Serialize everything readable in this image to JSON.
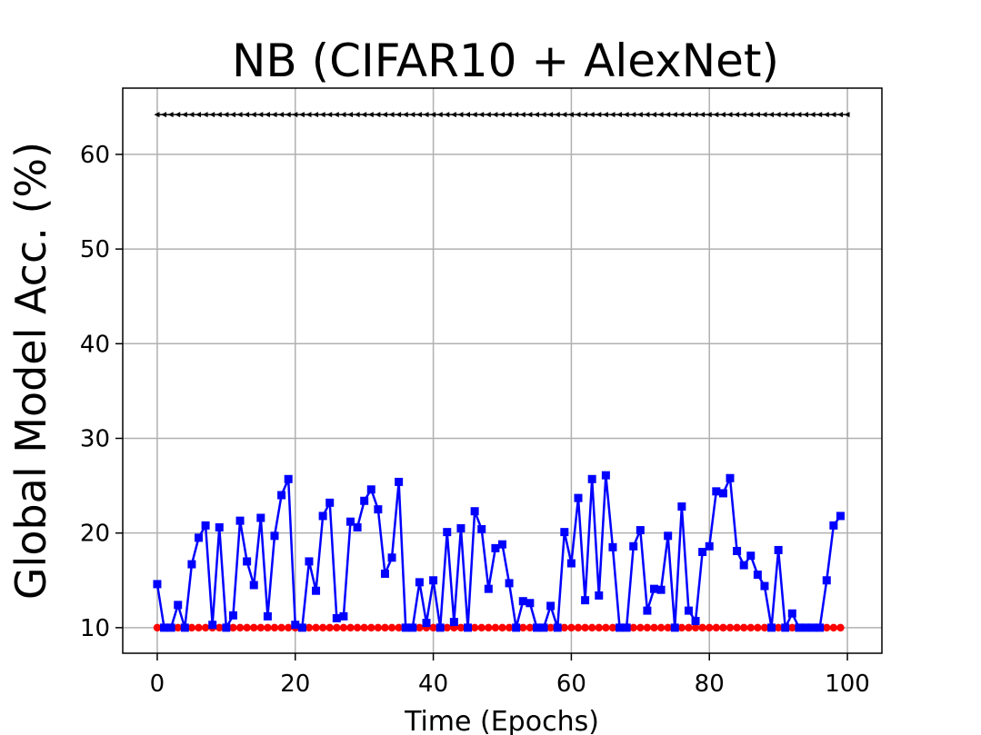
{
  "chart_data": {
    "type": "line",
    "title": "NB (CIFAR10 + AlexNet)",
    "xlabel": "Time (Epochs)",
    "ylabel": "Global Model Acc. (%)",
    "xlim": [
      -5,
      105
    ],
    "ylim": [
      7.3,
      67
    ],
    "xticks": [
      0,
      20,
      40,
      60,
      80,
      100
    ],
    "yticks": [
      10,
      20,
      30,
      40,
      50,
      60
    ],
    "grid": true,
    "legend": "none",
    "series": [
      {
        "color": "#000000",
        "marker": "triangle-left",
        "x_start": 0,
        "x_end": 100,
        "x_step": 1,
        "values_constant": 64.2
      },
      {
        "color": "#ff0000",
        "marker": "circle",
        "x_start": 0,
        "x_end": 99,
        "x_step": 1,
        "values_constant": 10.0
      },
      {
        "color": "#0000ff",
        "marker": "square",
        "x_start": 0,
        "x_step": 1,
        "values": [
          14.6,
          10.0,
          10.0,
          12.4,
          10.0,
          16.7,
          19.5,
          20.8,
          10.3,
          20.6,
          10.0,
          11.3,
          21.3,
          17.0,
          14.5,
          21.6,
          11.2,
          19.7,
          24.0,
          25.7,
          10.3,
          10.0,
          17.0,
          13.9,
          21.8,
          23.2,
          11.0,
          11.2,
          21.2,
          20.6,
          23.4,
          24.6,
          22.5,
          15.7,
          17.4,
          25.4,
          10.0,
          10.0,
          14.8,
          10.5,
          15.0,
          10.0,
          20.1,
          10.6,
          20.5,
          10.0,
          22.3,
          20.4,
          14.1,
          18.4,
          18.8,
          14.7,
          10.0,
          12.8,
          12.6,
          10.0,
          10.0,
          12.3,
          10.0,
          20.1,
          16.8,
          23.7,
          12.9,
          25.7,
          13.4,
          26.1,
          18.5,
          10.0,
          10.0,
          18.6,
          20.3,
          11.8,
          14.1,
          14.0,
          19.7,
          10.0,
          22.8,
          11.8,
          10.7,
          18.0,
          18.6,
          24.4,
          24.2,
          25.8,
          18.1,
          16.6,
          17.6,
          15.6,
          14.4,
          10.0,
          18.2,
          10.0,
          11.5,
          10.0,
          10.0,
          10.0,
          10.0,
          15.0,
          20.8,
          21.8
        ]
      }
    ]
  }
}
